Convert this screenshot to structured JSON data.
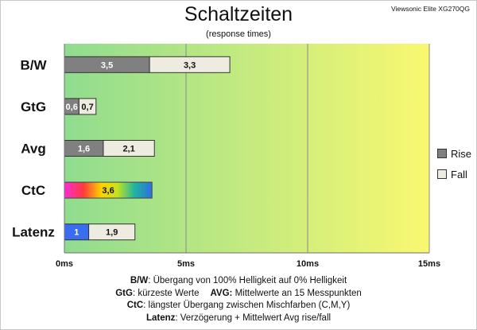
{
  "header": {
    "title": "Schaltzeiten",
    "subtitle": "(response times)",
    "model": "Viewsonic Elite XG270QG"
  },
  "chart_data": {
    "type": "bar",
    "orientation": "horizontal",
    "stacked": true,
    "categories": [
      "B/W",
      "GtG",
      "Avg",
      "CtC",
      "Latenz"
    ],
    "series": [
      {
        "name": "Rise",
        "color": "#808080",
        "values": [
          3.5,
          0.6,
          1.6,
          null,
          1
        ]
      },
      {
        "name": "Fall",
        "color": "#eeece1",
        "values": [
          3.3,
          0.7,
          2.1,
          null,
          1.9
        ]
      }
    ],
    "special_bars": {
      "CtC": {
        "value": 3.6,
        "fill": "rainbow"
      },
      "Latenz_first_segment_color": "#3a6cf2"
    },
    "data_labels": [
      [
        "3,5",
        "3,3"
      ],
      [
        "0,6",
        "0,7"
      ],
      [
        "1,6",
        "2,1"
      ],
      [
        "3,6"
      ],
      [
        "1",
        "1,9"
      ]
    ],
    "xlim": [
      0,
      15
    ],
    "ticks": [
      0,
      5,
      10,
      15
    ],
    "tick_labels": [
      "0ms",
      "5ms",
      "10ms",
      "15ms"
    ],
    "background_gradient": [
      "#8fdc8f",
      "#f9f870"
    ],
    "grid": true,
    "legend_position": "right"
  },
  "legend": [
    {
      "label": "Rise",
      "color": "#808080"
    },
    {
      "label": "Fall",
      "color": "#eeece1"
    }
  ],
  "notes": {
    "bw_key": "B/W",
    "bw_text": ":  Übergang von 100% Helligkeit auf 0% Helligkeit",
    "gtg_key": "GtG",
    "gtg_text": ": kürzeste  Werte",
    "avg_key": "AVG:",
    "avg_text": " Mittelwerte  an 15 Messpunkten",
    "ctc_key": "CtC",
    "ctc_text": ": längster Übergang  zwischen Mischfarben  (C,M,Y)",
    "latenz_key": "Latenz",
    "latenz_text": ": Verzögerung  + Mittelwert Avg rise/fall"
  }
}
